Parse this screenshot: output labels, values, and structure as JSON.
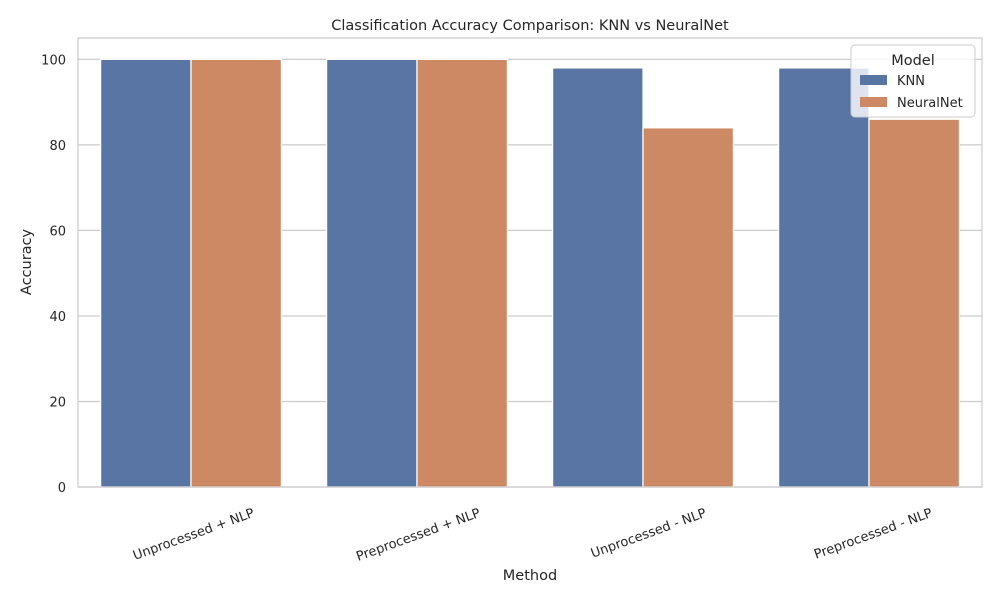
{
  "chart_data": {
    "type": "bar",
    "title": "Classification Accuracy Comparison: KNN vs NeuralNet",
    "xlabel": "Method",
    "ylabel": "Accuracy",
    "categories": [
      "Unprocessed + NLP",
      "Preprocessed + NLP",
      "Unprocessed - NLP",
      "Preprocessed - NLP"
    ],
    "series": [
      {
        "name": "KNN",
        "color": "#5975a4",
        "values": [
          100,
          100,
          98,
          98
        ]
      },
      {
        "name": "NeuralNet",
        "color": "#cc8963",
        "values": [
          100,
          100,
          84,
          86
        ]
      }
    ],
    "ylim": [
      0,
      105
    ],
    "yticks": [
      0,
      20,
      40,
      60,
      80,
      100
    ],
    "grid": true,
    "legend": {
      "title": "Model",
      "position": "top-right"
    }
  }
}
